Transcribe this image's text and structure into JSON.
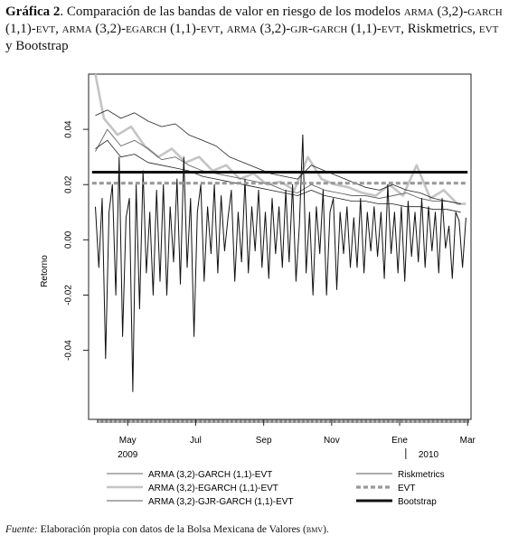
{
  "title": {
    "label": "Gráfica 2",
    "p1": ". Comparación de las bandas de valor en riesgo de los modelos ",
    "s1": "arma",
    "p2": " (3,2)-",
    "s2": "garch",
    "p3": " (1,1)-",
    "s3": "evt",
    "p4": ", ",
    "s4": "arma",
    "p5": " (3,2)-",
    "s5": "egarch",
    "p6": " (1,1)-",
    "s6": "evt",
    "p7": ", ",
    "s7": "arma",
    "p8": " (3,2)-",
    "s8": "gjr-garch",
    "p9": " (1,1)-",
    "s9": "evt",
    "p10": ", Riskmetrics, ",
    "s10": "evt",
    "p11": " y Bootstrap"
  },
  "note": {
    "label": "Fuente:",
    "text1": " Elaboración propia con datos de la Bolsa Mexicana de Valores (",
    "abbr": "bmv",
    "text2": ")."
  },
  "colors": {
    "returns": "#111111",
    "garch": "#666666",
    "egarch": "#c4c4c4",
    "gjr": "#222222",
    "riskmetrics": "#111111",
    "evt": "#999999",
    "bootstrap": "#111111"
  },
  "chart_data": {
    "type": "line",
    "ylabel": "Retorno",
    "ylim": [
      -0.065,
      0.06
    ],
    "yticks": [
      "0.04",
      "0.02",
      "0.00",
      "-0.02",
      "-0.04"
    ],
    "ytick_values": [
      0.04,
      0.02,
      0.0,
      -0.02,
      -0.04
    ],
    "xticks": [
      "May",
      "Jul",
      "Sep",
      "Nov",
      "Ene",
      "Mar"
    ],
    "xtick_values": [
      1.0,
      3.0,
      5.0,
      7.0,
      9.0,
      11.0
    ],
    "xlim": [
      -0.15,
      11.1
    ],
    "year_labels": [
      {
        "label": "2009",
        "x": 1.0
      },
      {
        "label": "2010",
        "x": 9.85
      }
    ],
    "grid": false,
    "legend": "bottom",
    "series": [
      {
        "name": "ARMA (3,2)-GARCH (1,1)-EVT",
        "style": "thin-gray",
        "x": [
          0.05,
          0.4,
          0.8,
          1.2,
          1.6,
          2.0,
          2.4,
          2.8,
          3.2,
          3.6,
          4.0,
          4.4,
          4.8,
          5.2,
          5.6,
          6.0,
          6.4,
          6.8,
          7.2,
          7.6,
          8.0,
          8.4,
          8.8,
          9.2,
          9.6,
          10.0,
          10.4,
          10.8
        ],
        "y": [
          0.032,
          0.04,
          0.034,
          0.036,
          0.033,
          0.029,
          0.03,
          0.027,
          0.025,
          0.024,
          0.023,
          0.022,
          0.021,
          0.02,
          0.018,
          0.017,
          0.02,
          0.018,
          0.017,
          0.016,
          0.016,
          0.015,
          0.016,
          0.017,
          0.015,
          0.014,
          0.014,
          0.013
        ]
      },
      {
        "name": "ARMA (3,2)-EGARCH (1,1)-EVT",
        "style": "thick-lightgray",
        "x": [
          0.05,
          0.3,
          0.7,
          1.1,
          1.5,
          1.9,
          2.3,
          2.7,
          3.1,
          3.5,
          3.9,
          4.3,
          4.7,
          5.1,
          5.5,
          5.9,
          6.3,
          6.7,
          7.1,
          7.5,
          7.9,
          8.3,
          8.7,
          9.1,
          9.5,
          9.9,
          10.3,
          10.7,
          10.95
        ],
        "y": [
          0.06,
          0.044,
          0.038,
          0.041,
          0.034,
          0.03,
          0.033,
          0.028,
          0.03,
          0.025,
          0.027,
          0.022,
          0.024,
          0.02,
          0.021,
          0.018,
          0.03,
          0.022,
          0.02,
          0.019,
          0.017,
          0.016,
          0.02,
          0.016,
          0.027,
          0.015,
          0.018,
          0.013,
          0.013
        ]
      },
      {
        "name": "ARMA (3,2)-GJR-GARCH (1,1)-EVT",
        "style": "thin-black",
        "x": [
          0.05,
          0.4,
          0.8,
          1.2,
          1.6,
          2.0,
          2.4,
          2.8,
          3.2,
          3.6,
          4.0,
          4.4,
          4.8,
          5.2,
          5.6,
          6.0,
          6.4,
          6.8,
          7.2,
          7.6,
          8.0,
          8.4,
          8.8,
          9.2,
          9.6,
          10.0,
          10.4,
          10.8
        ],
        "y": [
          0.033,
          0.036,
          0.03,
          0.031,
          0.028,
          0.027,
          0.026,
          0.025,
          0.023,
          0.022,
          0.021,
          0.02,
          0.019,
          0.018,
          0.017,
          0.016,
          0.018,
          0.016,
          0.015,
          0.014,
          0.014,
          0.013,
          0.013,
          0.012,
          0.012,
          0.011,
          0.011,
          0.01
        ]
      },
      {
        "name": "Riskmetrics",
        "style": "thin-black",
        "x": [
          0.05,
          0.4,
          0.8,
          1.2,
          1.6,
          2.0,
          2.4,
          2.8,
          3.2,
          3.6,
          4.0,
          4.4,
          4.8,
          5.2,
          5.6,
          6.0,
          6.4,
          6.8,
          7.2,
          7.6,
          8.0,
          8.4,
          8.8,
          9.2,
          9.6,
          10.0,
          10.4,
          10.8
        ],
        "y": [
          0.045,
          0.047,
          0.044,
          0.046,
          0.043,
          0.041,
          0.042,
          0.038,
          0.036,
          0.034,
          0.03,
          0.028,
          0.026,
          0.024,
          0.023,
          0.022,
          0.027,
          0.025,
          0.023,
          0.021,
          0.019,
          0.018,
          0.02,
          0.018,
          0.017,
          0.015,
          0.014,
          0.013
        ]
      },
      {
        "name": "EVT",
        "style": "dashed-gray",
        "x": [
          -0.05,
          11.0
        ],
        "y": [
          0.0205,
          0.0205
        ]
      },
      {
        "name": "Bootstrap",
        "style": "thick-black",
        "x": [
          -0.05,
          11.0
        ],
        "y": [
          0.0245,
          0.0245
        ]
      },
      {
        "name": "",
        "style": "returns",
        "x": [
          0.05,
          0.15,
          0.25,
          0.35,
          0.45,
          0.55,
          0.65,
          0.75,
          0.85,
          0.95,
          1.05,
          1.15,
          1.25,
          1.35,
          1.45,
          1.55,
          1.65,
          1.75,
          1.85,
          1.95,
          2.05,
          2.15,
          2.25,
          2.35,
          2.45,
          2.55,
          2.65,
          2.75,
          2.85,
          2.95,
          3.05,
          3.15,
          3.25,
          3.35,
          3.45,
          3.55,
          3.65,
          3.75,
          3.85,
          3.95,
          4.05,
          4.15,
          4.25,
          4.35,
          4.45,
          4.55,
          4.65,
          4.75,
          4.85,
          4.95,
          5.05,
          5.15,
          5.25,
          5.35,
          5.45,
          5.55,
          5.65,
          5.75,
          5.85,
          5.95,
          6.05,
          6.15,
          6.25,
          6.35,
          6.45,
          6.55,
          6.65,
          6.75,
          6.85,
          6.95,
          7.05,
          7.15,
          7.25,
          7.35,
          7.45,
          7.55,
          7.65,
          7.75,
          7.85,
          7.95,
          8.05,
          8.15,
          8.25,
          8.35,
          8.45,
          8.55,
          8.65,
          8.75,
          8.85,
          8.95,
          9.05,
          9.15,
          9.25,
          9.35,
          9.45,
          9.55,
          9.65,
          9.75,
          9.85,
          9.95,
          10.05,
          10.15,
          10.25,
          10.35,
          10.45,
          10.55,
          10.65,
          10.75,
          10.85,
          10.95
        ],
        "y": [
          0.012,
          -0.01,
          0.015,
          -0.043,
          0.01,
          0.02,
          -0.02,
          0.03,
          -0.035,
          0.008,
          0.015,
          -0.055,
          0.02,
          -0.025,
          0.025,
          -0.012,
          0.01,
          -0.02,
          0.018,
          -0.015,
          0.02,
          -0.02,
          0.012,
          -0.008,
          0.022,
          -0.016,
          0.03,
          -0.01,
          0.015,
          -0.035,
          0.01,
          0.02,
          -0.015,
          0.012,
          -0.005,
          0.02,
          -0.012,
          0.016,
          -0.004,
          0.008,
          0.018,
          -0.015,
          0.01,
          -0.008,
          0.022,
          -0.012,
          0.012,
          -0.004,
          0.018,
          -0.01,
          0.01,
          -0.014,
          0.015,
          -0.005,
          0.012,
          -0.01,
          0.018,
          -0.008,
          0.02,
          -0.015,
          0.005,
          0.038,
          -0.012,
          0.01,
          -0.02,
          0.012,
          -0.005,
          0.018,
          -0.02,
          0.01,
          0.015,
          -0.018,
          0.01,
          -0.005,
          0.012,
          -0.01,
          0.008,
          -0.01,
          0.015,
          -0.012,
          0.01,
          -0.004,
          0.012,
          -0.006,
          0.01,
          -0.014,
          0.02,
          -0.005,
          0.01,
          -0.012,
          0.012,
          -0.015,
          0.014,
          -0.006,
          0.01,
          -0.008,
          0.015,
          -0.01,
          0.012,
          -0.004,
          0.01,
          -0.012,
          0.015,
          -0.003,
          0.005,
          -0.014,
          0.01,
          0.007,
          -0.01,
          0.008
        ]
      }
    ]
  }
}
